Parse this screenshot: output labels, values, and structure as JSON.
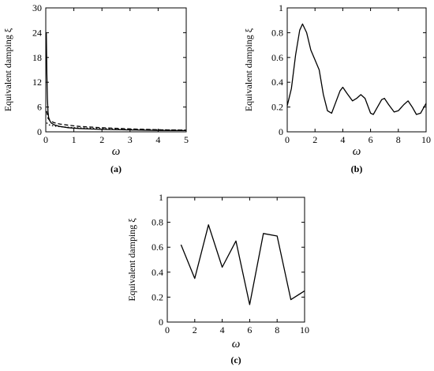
{
  "chart_data": [
    {
      "type": "line",
      "panel_label": "(a)",
      "xlabel": "ω",
      "ylabel": "Equivalent damping ξ",
      "xlim": [
        0,
        5
      ],
      "ylim": [
        0,
        30
      ],
      "x_ticks": [
        0,
        1,
        2,
        3,
        4,
        5
      ],
      "y_ticks": [
        0,
        6,
        12,
        18,
        24,
        30
      ],
      "grid": false,
      "series": [
        {
          "style": "solid",
          "x": [
            0.02,
            0.04,
            0.06,
            0.08,
            0.1,
            0.15,
            0.2,
            0.3,
            0.5,
            0.8,
            1.2,
            2,
            3,
            4,
            5
          ],
          "y": [
            24,
            14,
            8,
            5,
            3.5,
            2.6,
            2.1,
            1.7,
            1.3,
            1.0,
            0.8,
            0.6,
            0.45,
            0.35,
            0.3
          ]
        },
        {
          "style": "dashed",
          "x": [
            0.03,
            0.08,
            0.15,
            0.3,
            0.5,
            0.8,
            1.2,
            2,
            3,
            4,
            5
          ],
          "y": [
            5,
            3.3,
            2.7,
            2.2,
            1.9,
            1.6,
            1.3,
            1.0,
            0.7,
            0.5,
            0.4
          ]
        },
        {
          "style": "dotted",
          "x": [
            0.03,
            0.1,
            0.3,
            0.6,
            1,
            2,
            3,
            4,
            5
          ],
          "y": [
            2.2,
            1.7,
            1.4,
            1.2,
            1.0,
            0.8,
            0.6,
            0.5,
            0.4
          ]
        }
      ]
    },
    {
      "type": "line",
      "panel_label": "(b)",
      "xlabel": "ω",
      "ylabel": "Equivalent damping ξ",
      "xlim": [
        0,
        10
      ],
      "ylim": [
        0,
        1
      ],
      "x_ticks": [
        0,
        2,
        4,
        6,
        8,
        10
      ],
      "y_ticks": [
        0,
        0.2,
        0.4,
        0.6,
        0.8,
        1
      ],
      "grid": false,
      "series": [
        {
          "style": "solid",
          "x": [
            0,
            0.3,
            0.6,
            0.9,
            1.1,
            1.4,
            1.7,
            2.0,
            2.3,
            2.6,
            2.9,
            3.2,
            3.5,
            3.8,
            4.0,
            4.3,
            4.7,
            5.0,
            5.3,
            5.6,
            6.0,
            6.2,
            6.5,
            6.8,
            7.0,
            7.3,
            7.7,
            8.0,
            8.4,
            8.7,
            9.0,
            9.3,
            9.6,
            10.0
          ],
          "y": [
            0.21,
            0.35,
            0.62,
            0.82,
            0.87,
            0.8,
            0.66,
            0.58,
            0.5,
            0.3,
            0.17,
            0.15,
            0.24,
            0.33,
            0.36,
            0.31,
            0.25,
            0.27,
            0.3,
            0.27,
            0.15,
            0.14,
            0.2,
            0.26,
            0.27,
            0.22,
            0.16,
            0.17,
            0.22,
            0.25,
            0.2,
            0.14,
            0.15,
            0.23
          ]
        }
      ]
    },
    {
      "type": "line",
      "panel_label": "(c)",
      "xlabel": "ω",
      "ylabel": "Equivalent damping ξ",
      "xlim": [
        0,
        10
      ],
      "ylim": [
        0,
        1
      ],
      "x_ticks": [
        0,
        2,
        4,
        6,
        8,
        10
      ],
      "y_ticks": [
        0,
        0.2,
        0.4,
        0.6,
        0.8,
        1
      ],
      "grid": false,
      "series": [
        {
          "style": "solid",
          "x": [
            1,
            2,
            3,
            4,
            5,
            6,
            7,
            8,
            9,
            10
          ],
          "y": [
            0.62,
            0.35,
            0.78,
            0.44,
            0.65,
            0.14,
            0.71,
            0.69,
            0.18,
            0.25
          ]
        }
      ]
    }
  ]
}
